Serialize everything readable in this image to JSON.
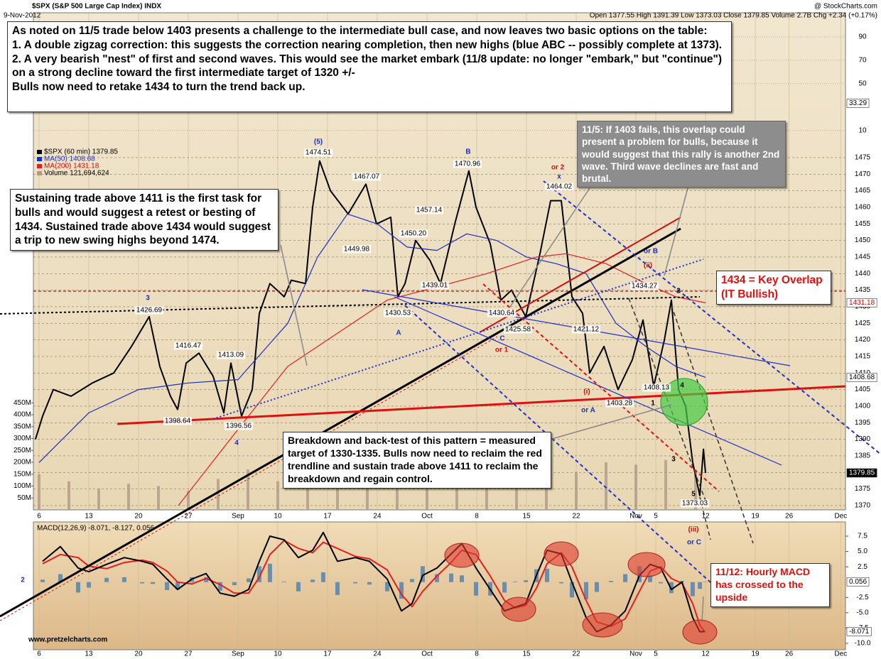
{
  "chart_data": [
    {
      "type": "line",
      "title": "$SPX (S&P 500 Large Cap Index) INDX",
      "subtitle": "9-Nov-2012",
      "source": "@ StockCharts.com",
      "quote": "Open 1377.55  High 1391.39  Low 1373.03  Close 1379.85  Volume 2.7B  Chg +2.34 (+0.17%)",
      "xlim": [
        -0.57,
        81.07
      ],
      "xticks": [
        {
          "value": 0,
          "label": "6"
        },
        {
          "value": 5,
          "label": "13"
        },
        {
          "value": 10,
          "label": "20"
        },
        {
          "value": 15,
          "label": "27"
        },
        {
          "value": 20,
          "label": "Sep"
        },
        {
          "value": 24,
          "label": "10"
        },
        {
          "value": 29,
          "label": "17"
        },
        {
          "value": 34,
          "label": "24"
        },
        {
          "value": 39,
          "label": "Oct"
        },
        {
          "value": 44,
          "label": "8"
        },
        {
          "value": 49,
          "label": "15"
        },
        {
          "value": 54,
          "label": "22"
        },
        {
          "value": 60,
          "label": "Nov"
        },
        {
          "value": 62,
          "label": "5"
        },
        {
          "value": 67,
          "label": "12"
        },
        {
          "value": 72,
          "label": "19"
        },
        {
          "value": 75.4,
          "label": "26"
        },
        {
          "value": 80.6,
          "label": "Dec"
        }
      ],
      "ylim": [
        1368.7,
        1518.7
      ],
      "yticks": [
        1370,
        1375,
        1380,
        1385,
        1390,
        1395,
        1400,
        1405,
        1410,
        1415,
        1420,
        1425,
        1430,
        1435,
        1440,
        1445,
        1450,
        1455,
        1460,
        1465,
        1470,
        1475
      ],
      "y2lim": [
        -314,
        110.6
      ],
      "y2ticks": [
        10,
        50,
        70,
        90
      ],
      "y2_last": 33.29,
      "vlim": [
        0,
        2090
      ],
      "vticks": [
        {
          "value": 50,
          "label": "50M"
        },
        {
          "value": 100,
          "label": "100M"
        },
        {
          "value": 150,
          "label": "150M"
        },
        {
          "value": 200,
          "label": "200M"
        },
        {
          "value": 250,
          "label": "250M"
        },
        {
          "value": 300,
          "label": "300M"
        },
        {
          "value": 350,
          "label": "350M"
        },
        {
          "value": 400,
          "label": "400M"
        },
        {
          "value": 450,
          "label": "450M"
        }
      ],
      "grid": true,
      "series": [
        {
          "name": "$SPX (60 min) 1379.85",
          "color": "#000000",
          "x": [
            -0.36,
            0.36,
            1.43,
            3.22,
            5.36,
            7.5,
            9.29,
            11.07,
            12.14,
            13.21,
            13.93,
            14.79,
            16.07,
            17.5,
            18.57,
            19.29,
            20.36,
            21.43,
            22.14,
            23.21,
            24.64,
            25.36,
            26.79,
            27.5,
            28.21,
            29.29,
            31.07,
            32.86,
            33.93,
            35.36,
            36.07,
            36.79,
            37.86,
            39.29,
            40.36,
            41.79,
            43.21,
            43.93,
            45.36,
            46.43,
            47.5,
            48.93,
            50.36,
            51.43,
            52.5,
            53.57,
            54.64,
            55.36,
            56.79,
            58.21,
            59.64,
            60.71,
            61.79,
            62.86,
            63.57,
            64.29,
            65,
            65.71,
            66.43,
            66.79,
            67
          ],
          "values": [
            1390,
            1397,
            1405,
            1403,
            1407,
            1410,
            1418,
            1427,
            1412,
            1403,
            1399,
            1413,
            1416,
            1409,
            1398,
            1413,
            1397,
            1405,
            1428,
            1437,
            1433,
            1438,
            1437,
            1460,
            1474,
            1465,
            1458,
            1467,
            1455,
            1457,
            1433,
            1437,
            1450,
            1444,
            1437,
            1455,
            1471,
            1460,
            1449,
            1432,
            1435,
            1427,
            1446,
            1462,
            1462,
            1433,
            1428,
            1410,
            1418,
            1405,
            1414,
            1426,
            1406,
            1420,
            1432,
            1405,
            1400,
            1383,
            1373,
            1387,
            1379.85
          ]
        },
        {
          "name": "MA(50) 1408.68",
          "color": "#1a2fbf",
          "x": [
            0,
            5,
            10,
            15,
            20,
            25,
            28,
            31,
            34,
            37,
            40,
            43,
            46,
            49,
            52,
            55,
            58,
            61,
            64,
            67
          ],
          "values": [
            1383,
            1398,
            1405,
            1407,
            1408,
            1425,
            1445,
            1458,
            1455,
            1448,
            1447,
            1452,
            1450,
            1445,
            1443,
            1440,
            1425,
            1418,
            1412,
            1408.68
          ]
        },
        {
          "name": "MA(200) 1431.18",
          "color": "#e02020",
          "x": [
            14,
            20,
            25,
            30,
            35,
            40,
            45,
            50,
            53,
            57,
            61,
            64,
            67
          ],
          "values": [
            1370,
            1393,
            1412,
            1422,
            1432,
            1436,
            1440,
            1445,
            1446,
            1443,
            1437,
            1433,
            1431.18
          ]
        },
        {
          "name": "Volume 121,694,624",
          "color": "#b09a86",
          "axis": "volume",
          "x": [
            0,
            3,
            6,
            9,
            12,
            15,
            18,
            21,
            24,
            27,
            30,
            33,
            36,
            39,
            42,
            45,
            48,
            51,
            54,
            57,
            60,
            63,
            66
          ],
          "values": [
            150,
            120,
            90,
            110,
            100,
            80,
            130,
            170,
            120,
            110,
            140,
            200,
            120,
            150,
            130,
            110,
            180,
            140,
            160,
            200,
            190,
            210,
            170
          ]
        }
      ],
      "annotations": [
        {
          "text": "(5)",
          "color": "#1a2fbf"
        },
        {
          "text": "B",
          "color": "#1a2fbf"
        },
        {
          "text": "x",
          "color": "#1a2fbf"
        },
        {
          "text": "or 2",
          "color": "#d01010"
        },
        {
          "text": "3",
          "color": "#1a2fbf"
        },
        {
          "text": "A",
          "color": "#1a2fbf"
        },
        {
          "text": "C",
          "color": "#1a2fbf"
        },
        {
          "text": "or 1",
          "color": "#d01010"
        },
        {
          "text": "4",
          "color": "#1a2fbf"
        },
        {
          "text": "1",
          "color": "#000000"
        },
        {
          "text": "(i)",
          "color": "#d01010"
        },
        {
          "text": "or A",
          "color": "#1a2fbf"
        },
        {
          "text": "(ii)",
          "color": "#d01010"
        },
        {
          "text": "or B",
          "color": "#1a2fbf"
        },
        {
          "text": "2",
          "color": "#000000"
        },
        {
          "text": "4",
          "color": "#000000"
        },
        {
          "text": "3",
          "color": "#000000"
        },
        {
          "text": "5",
          "color": "#000000"
        },
        {
          "text": "(iii)",
          "color": "#d01010"
        },
        {
          "text": "or C",
          "color": "#1a2fbf"
        }
      ],
      "price_notes": [
        "1474.51",
        "1467.07",
        "1470.96",
        "1464.02",
        "1457.14",
        "1449.98",
        "1450.20",
        "1439.01",
        "1430.53",
        "1430.64",
        "1425.58",
        "1426.69",
        "1416.47",
        "1413.09",
        "1398.64",
        "1396.56",
        "1434.27",
        "1421.12",
        "1408.13",
        "1403.28",
        "1373.03"
      ],
      "notes": {
        "top": [
          "As noted on 11/5 trade below 1403 presents a challenge to the intermediate bull case, and now leaves two basic options on the table:",
          "1. A double zigzag correction: this suggests the correction nearing completion, then new highs (blue ABC -- possibly complete at 1373).",
          "2. A very bearish \"nest\" of first and second waves.  This would see the market embark (11/8 update: no longer \"embark,\" but \"continue\") on a strong decline toward the first intermediate target of 1320 +/-",
          "Bulls now need to retake 1434 to turn the trend back up."
        ],
        "left": "Sustaining trade above 1411 is the first task for bulls and would suggest a retest or besting of 1434.  Sustained trade above 1434 would suggest a trip to new swing highs beyond 1474.",
        "gray": "11/5: If 1403 fails, this overlap could present a problem for bulls, because it would suggest that this rally is another 2nd wave.  Third wave declines are fast and brutal.",
        "middle": "Breakdown and back-test of this pattern = measured target of 1330-1335.  Bulls now need to reclaim the red trendline and sustain trade above 1411 to reclaim the breakdown and regain control.",
        "key": "1434 = Key Overlap (IT Bullish)"
      }
    },
    {
      "type": "line",
      "title": "MACD(12,26,9) -8.071, -8.127, 0.056",
      "source": "www.pretzelcharts.com",
      "xlim": [
        -0.57,
        81.07
      ],
      "xticks": [
        {
          "value": 0,
          "label": "6"
        },
        {
          "value": 5,
          "label": "13"
        },
        {
          "value": 10,
          "label": "20"
        },
        {
          "value": 15,
          "label": "27"
        },
        {
          "value": 20,
          "label": "Sep"
        },
        {
          "value": 24,
          "label": "10"
        },
        {
          "value": 29,
          "label": "17"
        },
        {
          "value": 34,
          "label": "24"
        },
        {
          "value": 39,
          "label": "Oct"
        },
        {
          "value": 44,
          "label": "8"
        },
        {
          "value": 49,
          "label": "15"
        },
        {
          "value": 54,
          "label": "22"
        },
        {
          "value": 60,
          "label": "Nov"
        },
        {
          "value": 62,
          "label": "5"
        },
        {
          "value": 67,
          "label": "12"
        },
        {
          "value": 72,
          "label": "19"
        },
        {
          "value": 75.4,
          "label": "26"
        },
        {
          "value": 80.6,
          "label": "Dec"
        }
      ],
      "ylim": [
        -11.04,
        9.82
      ],
      "yticks": [
        {
          "value": -10,
          "label": "-10.0"
        },
        -7.5,
        {
          "value": -5,
          "label": "-5.0"
        },
        -2.5,
        2.5,
        {
          "value": 5,
          "label": "5.0"
        },
        7.5
      ],
      "x": [
        0.36,
        2.14,
        3.93,
        5,
        6.79,
        8.57,
        10.36,
        11.43,
        12.86,
        13.93,
        15.36,
        16.79,
        18.21,
        19.64,
        21.07,
        22.14,
        23.21,
        24.64,
        26.07,
        27.5,
        28.57,
        30,
        31.79,
        33.21,
        35,
        36.43,
        37.5,
        38.57,
        40,
        41.43,
        42.5,
        43.93,
        45.36,
        46.79,
        47.86,
        48.93,
        50,
        51.07,
        52.5,
        53.57,
        55,
        56.07,
        57.5,
        58.93,
        60.36,
        61.43,
        62.5,
        63.57,
        64.64,
        65.71,
        66.43,
        66.93
      ],
      "series": [
        {
          "color": "#4a7fb0",
          "kind": "histogram",
          "values": [
            0.4,
            1.3,
            -1.7,
            -0.9,
            0.7,
            0.8,
            -0.2,
            -0.3,
            -1.3,
            -1.2,
            0.8,
            0.8,
            -1.4,
            -0.5,
            0.6,
            2.6,
            3.0,
            0.1,
            -1.5,
            0.4,
            1.6,
            -2.1,
            -0.2,
            -0.4,
            -1.5,
            -2.7,
            0.5,
            2.6,
            1.3,
            1.4,
            1.1,
            -2.2,
            -2.2,
            -1.7,
            0.1,
            0.3,
            2.1,
            2.2,
            -0.2,
            -2.5,
            -2.8,
            -1.6,
            0.2,
            1.3,
            2.6,
            1.1,
            -0.2,
            -1.8,
            0.2,
            -2.3,
            -1.1,
            0.056
          ]
        },
        {
          "color": "#e02020",
          "kind": "line",
          "values": [
            3.0,
            4.5,
            4.0,
            2.6,
            2.2,
            3.2,
            3.6,
            3.2,
            1.8,
            0.0,
            -0.3,
            0.6,
            -0.4,
            -1.8,
            -1.8,
            0.8,
            4.5,
            6.8,
            5.5,
            4.8,
            6.5,
            5.5,
            4.2,
            3.8,
            2.0,
            -2.0,
            -4.0,
            -1.5,
            1.0,
            3.2,
            5.2,
            4.5,
            1.0,
            -3.0,
            -4.2,
            -3.8,
            -1.0,
            3.0,
            4.8,
            2.5,
            -3.0,
            -6.5,
            -7.2,
            -6.0,
            -1.5,
            1.8,
            2.5,
            0.6,
            -0.2,
            -3.5,
            -7.0,
            -8.127
          ]
        },
        {
          "color": "#000000",
          "kind": "line",
          "values": [
            3.4,
            5.8,
            2.3,
            1.7,
            2.9,
            4.0,
            3.4,
            2.9,
            0.5,
            -1.2,
            0.5,
            1.4,
            -1.8,
            -2.3,
            -1.2,
            3.4,
            7.5,
            6.9,
            4.0,
            5.2,
            8.1,
            3.4,
            4.0,
            3.4,
            0.5,
            -4.7,
            -3.5,
            1.1,
            2.3,
            4.6,
            6.3,
            2.3,
            -1.2,
            -4.7,
            -4.1,
            -3.5,
            1.1,
            5.2,
            4.6,
            0,
            -5.8,
            -8.1,
            -7.0,
            -4.7,
            1.1,
            2.9,
            2.3,
            -1.2,
            0,
            -5.8,
            -8.1,
            -8.071
          ]
        }
      ],
      "annotations": [
        {
          "text": "2",
          "color": "#1a2fbf"
        }
      ],
      "notes": {
        "macd": "11/12: Hourly MACD has crossed to the upside"
      }
    }
  ]
}
